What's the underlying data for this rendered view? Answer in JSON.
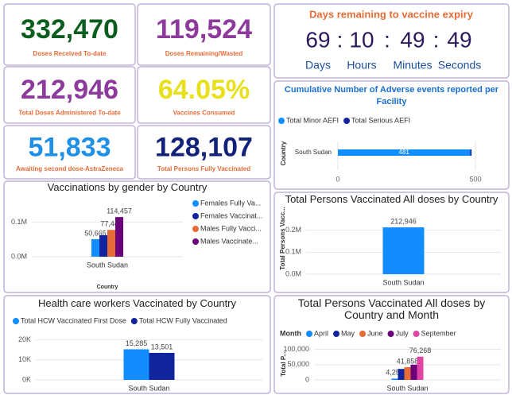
{
  "kpis": [
    {
      "value": "332,470",
      "label": "Doses Received To-date",
      "color": "#0b5e1e"
    },
    {
      "value": "119,524",
      "label": "Doses Remaining/Wasted",
      "color": "#8e3a9d"
    },
    {
      "value": "212,946",
      "label": "Total Doses Administered To-date",
      "color": "#8e3a9d"
    },
    {
      "value": "64.05%",
      "label": "Vaccines Consumed",
      "color": "#e8e01a"
    },
    {
      "value": "51,833",
      "label": "Awaiting second dose-AstraZeneca",
      "color": "#1e90e8"
    },
    {
      "value": "128,107",
      "label": "Total Persons Fully Vaccinated",
      "color": "#14237a"
    }
  ],
  "countdown": {
    "title": "Days remaining to vaccine expiry",
    "separator": ":",
    "units": [
      {
        "value": 69,
        "label": "Days"
      },
      {
        "value": 10,
        "label": "Hours"
      },
      {
        "value": 49,
        "label": "Minutes"
      },
      {
        "value": 49,
        "label": "Seconds"
      }
    ]
  },
  "chart_data": [
    {
      "type": "hbar",
      "title": "Cumulative Number of Adverse events reported per Facility",
      "categories": [
        "South Sudan"
      ],
      "series": [
        {
          "name": "Total Minor AEFI",
          "color": "#118dff",
          "values": [
            481
          ]
        },
        {
          "name": "Total Serious AEFI",
          "color": "#12239e",
          "values": [
            5
          ]
        }
      ],
      "xlim": [
        0,
        500
      ],
      "xticks": [
        0,
        500
      ],
      "y_label": "Country",
      "legend": "top"
    },
    {
      "type": "bar",
      "title": "Vaccinations by gender by Country",
      "categories": [
        "South Sudan"
      ],
      "x_label": "Country",
      "series": [
        {
          "name": "Females Fully Va...",
          "color": "#118dff",
          "values": [
            50665
          ],
          "value_labels": [
            "50,665"
          ]
        },
        {
          "name": "Females Vaccinat...",
          "color": "#12239e",
          "values": [
            62000
          ],
          "value_labels": [
            null
          ]
        },
        {
          "name": "Males Fully Vacci...",
          "color": "#e66c37",
          "values": [
            77442
          ],
          "value_labels": [
            "77,442"
          ]
        },
        {
          "name": "Males Vaccinate...",
          "color": "#6b007b",
          "values": [
            114457
          ],
          "value_labels": [
            "114,457"
          ]
        }
      ],
      "ylim": [
        0,
        140000
      ],
      "yticks": [
        {
          "value": 0,
          "label": "0.0M"
        },
        {
          "value": 100000,
          "label": "0.1M"
        }
      ],
      "legend": "right"
    },
    {
      "type": "bar",
      "title": "Total Persons Vaccinated All doses by Country",
      "categories": [
        "South Sudan"
      ],
      "series": [
        {
          "color": "#118dff",
          "values": [
            212946
          ],
          "value_labels": [
            "212,946"
          ]
        }
      ],
      "ylim": [
        0,
        300000
      ],
      "yticks": [
        {
          "value": 0,
          "label": "0.0M"
        },
        {
          "value": 100000,
          "label": "0.1M"
        },
        {
          "value": 200000,
          "label": "0.2M"
        }
      ],
      "y_label": "Total Persons Vacc..."
    },
    {
      "type": "bar",
      "title": "Health care workers Vaccinated by Country",
      "categories": [
        "South Sudan"
      ],
      "series": [
        {
          "name": "Total HCW Vaccinated First Dose",
          "color": "#118dff",
          "values": [
            15285
          ],
          "value_labels": [
            "15,285"
          ]
        },
        {
          "name": "Total HCW Fully Vaccinated",
          "color": "#12239e",
          "values": [
            13501
          ],
          "value_labels": [
            "13,501"
          ]
        }
      ],
      "ylim": [
        0,
        25000
      ],
      "yticks": [
        {
          "value": 0,
          "label": "0K"
        },
        {
          "value": 10000,
          "label": "10K"
        },
        {
          "value": 20000,
          "label": "20K"
        }
      ],
      "legend": "top"
    },
    {
      "type": "bar",
      "title": "Total Persons Vaccinated All doses by Country and Month",
      "categories": [
        "South Sudan"
      ],
      "legend_title": "Month",
      "series": [
        {
          "name": "April",
          "color": "#118dff",
          "values": [
            4254
          ],
          "value_labels": [
            "4,254"
          ]
        },
        {
          "name": "May",
          "color": "#12239e",
          "values": [
            36000
          ],
          "value_labels": [
            null
          ]
        },
        {
          "name": "June",
          "color": "#e66c37",
          "values": [
            41858
          ],
          "value_labels": [
            "41,858"
          ]
        },
        {
          "name": "July",
          "color": "#6b007b",
          "values": [
            50000
          ],
          "value_labels": [
            null
          ]
        },
        {
          "name": "September",
          "color": "#e044a7",
          "values": [
            76268
          ],
          "value_labels": [
            "76,268"
          ]
        }
      ],
      "ylim": [
        0,
        120000
      ],
      "yticks": [
        0,
        {
          "value": 50000,
          "label": "50,000"
        },
        {
          "value": 100000,
          "label": "100,000"
        }
      ],
      "y_label": "Total P...",
      "legend": "top"
    }
  ]
}
